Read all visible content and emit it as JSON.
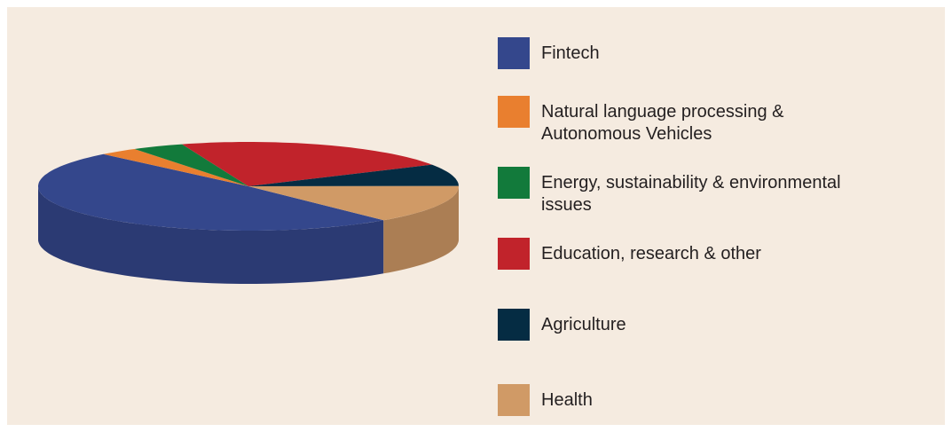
{
  "chart_data": {
    "type": "pie3d",
    "categories": [
      "Fintech",
      "Natural language processing &\nAutonomous Vehicles",
      "Energy, sustainability & environmental\nissues",
      "Education, research & other",
      "Agriculture",
      "Health"
    ],
    "values": [
      49,
      3,
      4,
      22,
      8,
      14
    ],
    "colors": [
      "#34478c",
      "#e97f2f",
      "#127a3b",
      "#c1232b",
      "#052c43",
      "#d09a66"
    ],
    "legend": "right"
  }
}
